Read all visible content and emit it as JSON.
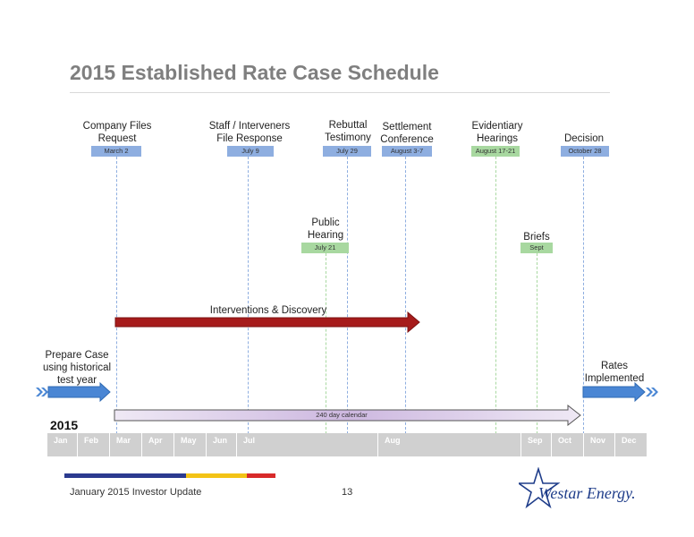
{
  "title": "2015 Established Rate Case Schedule",
  "events_top": [
    {
      "label_lines": [
        "Company Files",
        "Request"
      ],
      "date": "March 2",
      "color": "#8eaee0"
    },
    {
      "label_lines": [
        "Staff / Interveners",
        "File Response"
      ],
      "date": "July 9",
      "color": "#8eaee0"
    },
    {
      "label_lines": [
        "Rebuttal",
        "Testimony"
      ],
      "date": "July 29",
      "color": "#8eaee0"
    },
    {
      "label_lines": [
        "Settlement",
        "Conference"
      ],
      "date": "August 3-7",
      "color": "#8eaee0"
    },
    {
      "label_lines": [
        "Evidentiary",
        "Hearings"
      ],
      "date": "August 17-21",
      "color": "#a8d8a0"
    },
    {
      "label_lines": [
        "Decision"
      ],
      "date": "October 28",
      "color": "#8eaee0"
    }
  ],
  "events_mid": [
    {
      "label_lines": [
        "Public",
        "Hearing"
      ],
      "date": "July 21",
      "color": "#a8d8a0"
    },
    {
      "label_lines": [
        "Briefs"
      ],
      "date": "Sept",
      "color": "#a8d8a0"
    }
  ],
  "interventions_label": "Interventions & Discovery",
  "prepare_lines": [
    "Prepare Case",
    "using historical",
    "test year"
  ],
  "rates_lines": [
    "Rates",
    "Implemented"
  ],
  "calendar_label": "240 day calendar",
  "year": "2015",
  "months": [
    "Jan",
    "Feb",
    "Mar",
    "Apr",
    "May",
    "Jun",
    "Jul",
    "Aug",
    "Sep",
    "Oct",
    "Nov",
    "Dec"
  ],
  "footer": {
    "left": "January 2015 Investor Update",
    "page": "13",
    "logo_text": "Westar Energy."
  },
  "colors": {
    "dark_red": "#a61b1b",
    "blue_arrow": "#4a86d4",
    "calendar_fill": "#e3d9ee",
    "stripe_navy": "#2b3a8f",
    "stripe_yellow": "#f3c316",
    "stripe_red": "#d82a2a"
  }
}
